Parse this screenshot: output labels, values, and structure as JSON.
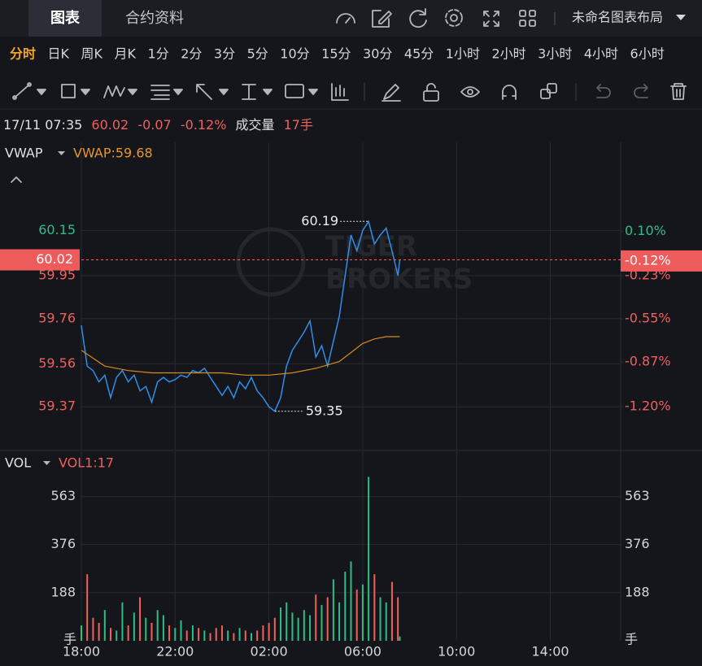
{
  "tabs": [
    "图表",
    "合约资料"
  ],
  "layout_name": "未命名图表布局",
  "timeframes": [
    "分时",
    "日K",
    "周K",
    "月K",
    "1分",
    "2分",
    "3分",
    "5分",
    "10分",
    "15分",
    "30分",
    "45分",
    "1小时",
    "2小时",
    "3小时",
    "4小时",
    "6小时"
  ],
  "active_timeframe": "分时",
  "info": {
    "time": "17/11 07:35",
    "price": "60.02",
    "change": "-0.07",
    "change_pct": "-0.12%",
    "volume_label": "成交量",
    "volume": "17手"
  },
  "watermark": [
    "TIGER",
    "BROKERS"
  ],
  "chart_data": [
    {
      "type": "line",
      "indicator_label": "VWAP:59.68",
      "up_color": "#2ebd85",
      "down_color": "#f0605d",
      "xlim": [
        0,
        23
      ],
      "ylim": [
        59.18,
        60.54
      ],
      "yticks": [
        60.15,
        59.95,
        59.76,
        59.56,
        59.37
      ],
      "y2lim": [
        -1.52,
        0.76
      ],
      "y2ticks": [
        {
          "value": 0.1,
          "label": "0.10%"
        },
        {
          "value": -0.23,
          "label": "-0.23%"
        },
        {
          "value": -0.55,
          "label": "-0.55%"
        },
        {
          "value": -0.87,
          "label": "-0.87%"
        },
        {
          "value": -1.2,
          "label": "-1.20%"
        }
      ],
      "last": {
        "value": 60.02,
        "y2": {
          "value": -0.12,
          "label": "-0.12%"
        }
      },
      "high": {
        "x": 12.25,
        "value": 60.19
      },
      "low": {
        "x": 8.25,
        "value": 59.35
      },
      "series": [
        {
          "color": "#2f8fe8",
          "x": [
            0,
            0.25,
            0.5,
            0.75,
            1,
            1.25,
            1.5,
            1.75,
            2,
            2.25,
            2.5,
            2.75,
            3,
            3.25,
            3.5,
            3.75,
            4,
            4.25,
            4.5,
            4.75,
            5,
            5.25,
            5.5,
            5.75,
            6,
            6.25,
            6.5,
            6.75,
            7,
            7.25,
            7.5,
            7.75,
            8,
            8.25,
            8.5,
            8.75,
            9,
            9.25,
            9.5,
            9.75,
            10,
            10.25,
            10.5,
            10.75,
            11,
            11.25,
            11.5,
            11.75,
            12,
            12.25,
            12.5,
            12.75,
            13,
            13.25,
            13.5,
            13.58
          ],
          "values": [
            59.73,
            59.55,
            59.53,
            59.48,
            59.51,
            59.41,
            59.5,
            59.53,
            59.48,
            59.51,
            59.44,
            59.46,
            59.39,
            59.48,
            59.5,
            59.48,
            59.49,
            59.51,
            59.5,
            59.53,
            59.52,
            59.54,
            59.5,
            59.46,
            59.42,
            59.46,
            59.41,
            59.48,
            59.45,
            59.5,
            59.44,
            59.41,
            59.37,
            59.35,
            59.41,
            59.55,
            59.62,
            59.66,
            59.7,
            59.75,
            59.59,
            59.64,
            59.55,
            59.66,
            59.77,
            59.95,
            60.13,
            60.06,
            60.15,
            60.19,
            60.09,
            60.13,
            60.16,
            60.06,
            59.95,
            60.02
          ]
        },
        {
          "name": "VWAP",
          "color": "#d98a1c",
          "x": [
            0,
            1,
            2,
            3,
            4,
            5,
            6,
            7,
            8,
            9,
            10,
            11,
            11.5,
            12,
            12.5,
            13,
            13.58
          ],
          "values": [
            59.62,
            59.55,
            59.53,
            59.52,
            59.52,
            59.52,
            59.52,
            59.51,
            59.51,
            59.52,
            59.54,
            59.57,
            59.61,
            59.65,
            59.67,
            59.68,
            59.68
          ]
        }
      ]
    },
    {
      "type": "bar",
      "title": "VOL",
      "indicator_label": "VOL1:17",
      "y_unit": "手",
      "up_color": "#2ebd85",
      "down_color": "#f0605d",
      "xlim": [
        0,
        23
      ],
      "xticks": [
        {
          "value": 0,
          "label": "18:00"
        },
        {
          "value": 4,
          "label": "22:00"
        },
        {
          "value": 8,
          "label": "02:00"
        },
        {
          "value": 12,
          "label": "06:00"
        },
        {
          "value": 16,
          "label": "10:00"
        },
        {
          "value": 20,
          "label": "14:00"
        }
      ],
      "ylim": [
        0,
        740
      ],
      "yticks": [
        563,
        376,
        188
      ],
      "x": [
        0,
        0.25,
        0.5,
        0.75,
        1,
        1.25,
        1.5,
        1.75,
        2,
        2.25,
        2.5,
        2.75,
        3,
        3.25,
        3.5,
        3.75,
        4,
        4.25,
        4.5,
        4.75,
        5,
        5.25,
        5.5,
        5.75,
        6,
        6.25,
        6.5,
        6.75,
        7,
        7.25,
        7.5,
        7.75,
        8,
        8.25,
        8.5,
        8.75,
        9,
        9.25,
        9.5,
        9.75,
        10,
        10.25,
        10.5,
        10.75,
        11,
        11.25,
        11.5,
        11.75,
        12,
        12.25,
        12.5,
        12.75,
        13,
        13.25,
        13.5,
        13.58
      ],
      "values": [
        60,
        260,
        90,
        70,
        120,
        50,
        40,
        150,
        60,
        110,
        170,
        90,
        70,
        120,
        100,
        60,
        50,
        80,
        40,
        60,
        50,
        40,
        30,
        50,
        60,
        40,
        30,
        50,
        40,
        30,
        40,
        60,
        70,
        90,
        130,
        150,
        110,
        90,
        120,
        100,
        180,
        140,
        170,
        240,
        150,
        270,
        310,
        200,
        220,
        640,
        260,
        170,
        150,
        230,
        170,
        17
      ]
    }
  ]
}
